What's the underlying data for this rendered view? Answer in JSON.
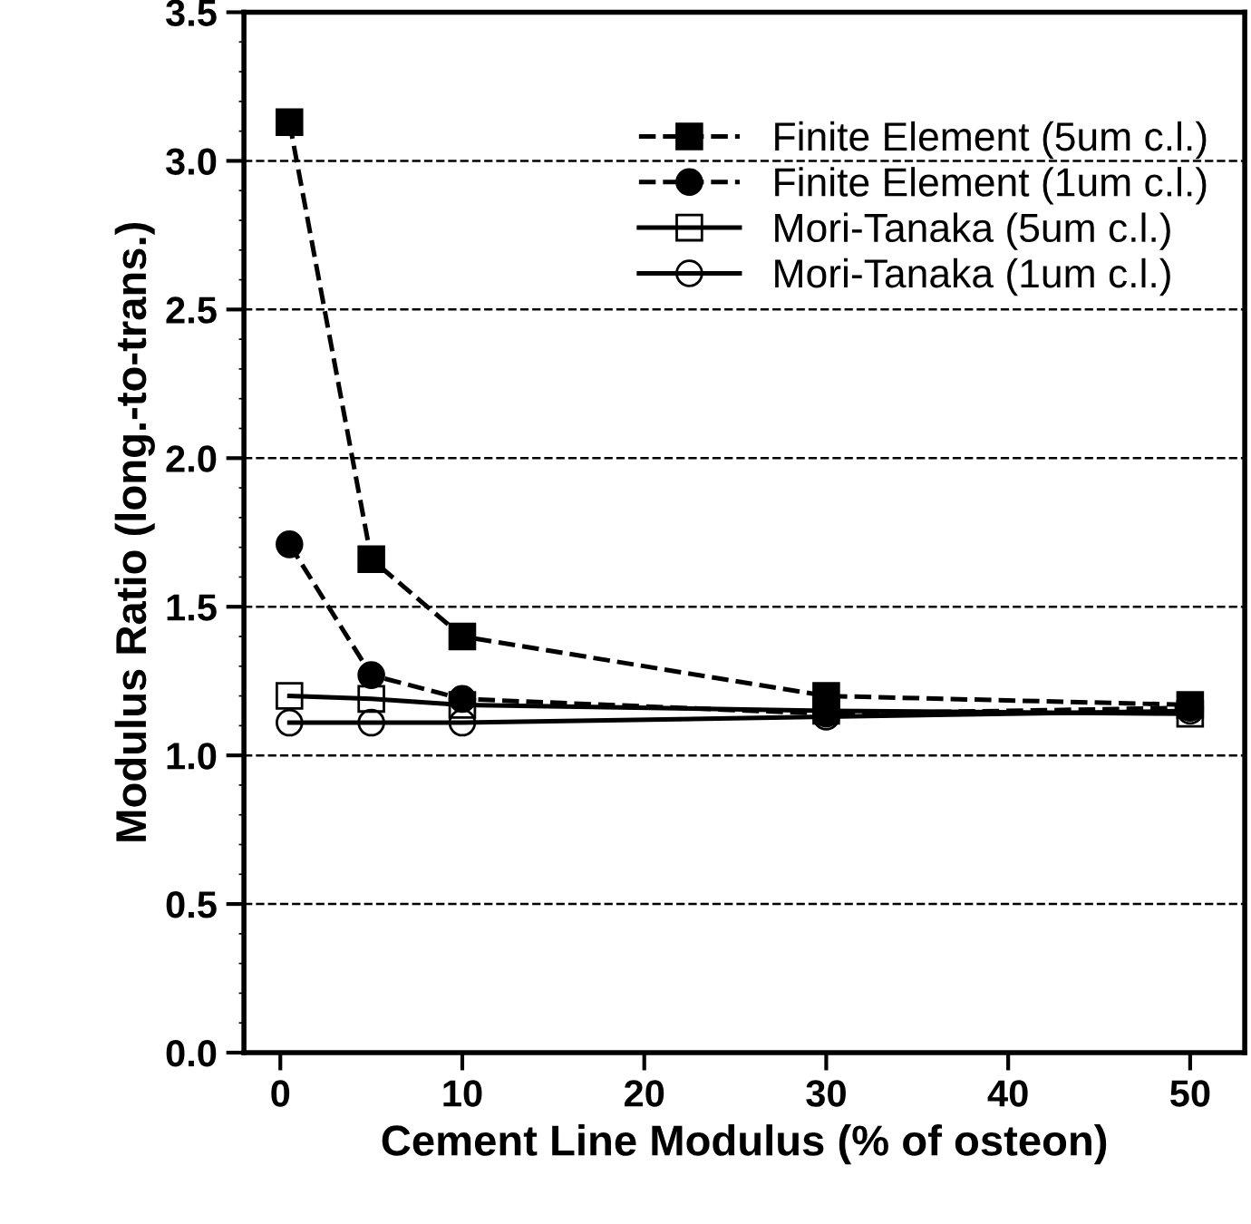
{
  "chart_data": {
    "type": "line",
    "xlabel": "Cement Line Modulus (% of osteon)",
    "ylabel": "Modulus Ratio (long.-to-trans.)",
    "xlim": [
      -2,
      53
    ],
    "xticks": [
      0,
      10,
      20,
      30,
      40,
      50
    ],
    "ylim": [
      0,
      3.5
    ],
    "yticks": [
      {
        "value": 0,
        "label": "0.0"
      },
      0.5,
      {
        "value": 1,
        "label": "1.0"
      },
      1.5,
      {
        "value": 2,
        "label": "2.0"
      },
      2.5,
      {
        "value": 3,
        "label": "3.0"
      },
      3.5
    ],
    "grid": "y",
    "legend": "top right",
    "series": [
      {
        "name": "Finite Element (5um c.l.)",
        "color": "#000000",
        "marker": "square",
        "line_style": "dashed",
        "x": [
          0.5,
          5,
          10,
          30,
          50
        ],
        "values": [
          3.13,
          1.66,
          1.4,
          1.2,
          1.17
        ]
      },
      {
        "name": "Finite Element (1um c.l.)",
        "color": "#000000",
        "marker": "circle",
        "line_style": "dashed",
        "x": [
          0.5,
          5,
          10,
          30,
          50
        ],
        "values": [
          1.71,
          1.27,
          1.19,
          1.14,
          1.16
        ]
      },
      {
        "name": "Mori-Tanaka (5um c.l.)",
        "color": "#000000",
        "marker": "square",
        "line_style": "solid",
        "x": [
          0.5,
          5,
          10,
          30,
          50
        ],
        "values": [
          1.2,
          1.19,
          1.17,
          1.15,
          1.14
        ]
      },
      {
        "name": "Mori-Tanaka (1um c.l.)",
        "color": "#000000",
        "marker": "circle",
        "line_style": "solid",
        "x": [
          0.5,
          5,
          10,
          30,
          50
        ],
        "values": [
          1.11,
          1.11,
          1.11,
          1.13,
          1.15
        ]
      }
    ]
  }
}
